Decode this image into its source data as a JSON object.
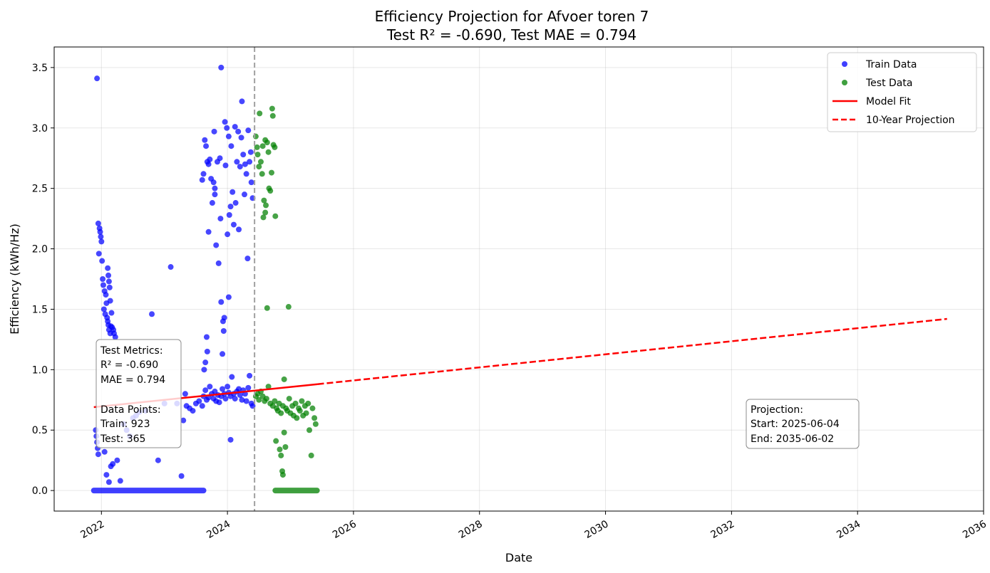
{
  "chart_data": {
    "type": "scatter",
    "title_line1": "Efficiency Projection for Afvoer toren 7",
    "title_line2": "Test R² = -0.690, Test MAE = 0.794",
    "xlabel": "Date",
    "ylabel": "Efficiency (kWh/Hz)",
    "x_ticks": [
      "2022",
      "2024",
      "2026",
      "2028",
      "2030",
      "2032",
      "2034",
      "2036"
    ],
    "y_ticks": [
      "0.0",
      "0.5",
      "1.0",
      "1.5",
      "2.0",
      "2.5",
      "3.0",
      "3.5"
    ],
    "xlim": [
      2021.25,
      2036.0
    ],
    "ylim": [
      -0.17,
      3.67
    ],
    "grid": true,
    "legend_position": "top-right",
    "colors": {
      "train": "#0000ff",
      "test": "#008000",
      "fit": "#ff0000",
      "split": "#a0a0a0"
    },
    "train_test_split_x": 2024.43,
    "series": [
      {
        "name": "Train Data",
        "kind": "scatter",
        "points": [
          [
            2021.93,
            3.41
          ],
          [
            2021.95,
            2.21
          ],
          [
            2021.97,
            2.17
          ],
          [
            2021.98,
            2.14
          ],
          [
            2021.99,
            2.1
          ],
          [
            2022.0,
            2.06
          ],
          [
            2021.96,
            1.96
          ],
          [
            2022.01,
            1.9
          ],
          [
            2022.02,
            1.75
          ],
          [
            2022.03,
            1.7
          ],
          [
            2022.05,
            1.65
          ],
          [
            2022.07,
            1.62
          ],
          [
            2022.08,
            1.55
          ],
          [
            2022.04,
            1.5
          ],
          [
            2022.06,
            1.46
          ],
          [
            2022.09,
            1.43
          ],
          [
            2022.1,
            1.4
          ],
          [
            2022.11,
            1.37
          ],
          [
            2022.12,
            1.33
          ],
          [
            2022.14,
            1.3
          ],
          [
            2022.15,
            1.36
          ],
          [
            2022.17,
            1.35
          ],
          [
            2022.19,
            1.33
          ],
          [
            2022.2,
            1.3
          ],
          [
            2022.22,
            1.27
          ],
          [
            2022.1,
            1.84
          ],
          [
            2022.11,
            1.78
          ],
          [
            2022.12,
            1.73
          ],
          [
            2022.13,
            1.68
          ],
          [
            2022.14,
            1.57
          ],
          [
            2022.16,
            1.47
          ],
          [
            2021.91,
            0.5
          ],
          [
            2021.92,
            0.45
          ],
          [
            2021.93,
            0.4
          ],
          [
            2021.94,
            0.35
          ],
          [
            2021.95,
            0.3
          ],
          [
            2022.05,
            0.32
          ],
          [
            2022.08,
            0.13
          ],
          [
            2022.12,
            0.07
          ],
          [
            2022.15,
            0.2
          ],
          [
            2022.18,
            0.22
          ],
          [
            2022.25,
            0.25
          ],
          [
            2022.3,
            0.08
          ],
          [
            2022.35,
            0.55
          ],
          [
            2022.4,
            0.5
          ],
          [
            2022.45,
            0.45
          ],
          [
            2022.5,
            0.6
          ],
          [
            2022.55,
            0.62
          ],
          [
            2022.6,
            0.65
          ],
          [
            2022.7,
            0.66
          ],
          [
            2022.8,
            1.46
          ],
          [
            2022.9,
            0.25
          ],
          [
            2023.0,
            0.72
          ],
          [
            2023.1,
            1.85
          ],
          [
            2023.2,
            0.72
          ],
          [
            2023.27,
            0.12
          ],
          [
            2023.3,
            0.58
          ],
          [
            2023.33,
            0.8
          ],
          [
            2023.35,
            0.7
          ],
          [
            2023.4,
            0.68
          ],
          [
            2023.45,
            0.66
          ],
          [
            2023.5,
            0.72
          ],
          [
            2023.55,
            0.74
          ],
          [
            2023.6,
            0.7
          ],
          [
            2023.62,
            0.78
          ],
          [
            2023.65,
            0.83
          ],
          [
            2023.67,
            0.75
          ],
          [
            2023.7,
            0.77
          ],
          [
            2023.72,
            0.86
          ],
          [
            2023.75,
            0.8
          ],
          [
            2023.78,
            0.76
          ],
          [
            2023.8,
            0.82
          ],
          [
            2023.82,
            0.74
          ],
          [
            2023.85,
            0.79
          ],
          [
            2023.87,
            0.73
          ],
          [
            2023.9,
            0.78
          ],
          [
            2023.92,
            0.84
          ],
          [
            2023.95,
            0.8
          ],
          [
            2023.97,
            0.76
          ],
          [
            2024.0,
            0.86
          ],
          [
            2024.02,
            0.81
          ],
          [
            2024.05,
            0.78
          ],
          [
            2024.07,
            0.94
          ],
          [
            2024.1,
            0.8
          ],
          [
            2024.12,
            0.76
          ],
          [
            2024.15,
            0.82
          ],
          [
            2024.18,
            0.84
          ],
          [
            2024.2,
            0.79
          ],
          [
            2024.23,
            0.75
          ],
          [
            2024.25,
            0.83
          ],
          [
            2024.28,
            0.8
          ],
          [
            2024.3,
            0.74
          ],
          [
            2024.33,
            0.85
          ],
          [
            2024.35,
            0.95
          ],
          [
            2024.38,
            0.72
          ],
          [
            2024.4,
            0.7
          ],
          [
            2024.05,
            0.42
          ],
          [
            2024.02,
            1.6
          ],
          [
            2023.65,
            1.06
          ],
          [
            2023.67,
            1.27
          ],
          [
            2023.68,
            1.15
          ],
          [
            2023.63,
            1.0
          ],
          [
            2023.6,
            2.57
          ],
          [
            2023.62,
            2.62
          ],
          [
            2023.64,
            2.9
          ],
          [
            2023.66,
            2.85
          ],
          [
            2023.68,
            2.72
          ],
          [
            2023.7,
            2.7
          ],
          [
            2023.72,
            2.74
          ],
          [
            2023.74,
            2.58
          ],
          [
            2023.76,
            2.38
          ],
          [
            2023.78,
            2.55
          ],
          [
            2023.79,
            2.97
          ],
          [
            2023.8,
            2.45
          ],
          [
            2023.82,
            2.03
          ],
          [
            2023.84,
            2.72
          ],
          [
            2023.86,
            1.88
          ],
          [
            2023.88,
            2.75
          ],
          [
            2023.89,
            2.25
          ],
          [
            2023.9,
            3.5
          ],
          [
            2023.92,
            1.13
          ],
          [
            2023.93,
            1.4
          ],
          [
            2023.95,
            1.43
          ],
          [
            2023.94,
            1.32
          ],
          [
            2023.96,
            3.05
          ],
          [
            2023.97,
            2.69
          ],
          [
            2023.99,
            3.0
          ],
          [
            2024.0,
            2.12
          ],
          [
            2024.02,
            2.93
          ],
          [
            2024.03,
            2.28
          ],
          [
            2024.05,
            2.35
          ],
          [
            2024.06,
            2.85
          ],
          [
            2024.08,
            2.47
          ],
          [
            2024.1,
            2.2
          ],
          [
            2024.12,
            3.01
          ],
          [
            2024.13,
            2.38
          ],
          [
            2024.15,
            2.72
          ],
          [
            2024.17,
            2.97
          ],
          [
            2024.18,
            2.16
          ],
          [
            2024.2,
            2.68
          ],
          [
            2024.22,
            2.92
          ],
          [
            2024.23,
            3.22
          ],
          [
            2024.25,
            2.78
          ],
          [
            2024.27,
            2.45
          ],
          [
            2024.28,
            2.7
          ],
          [
            2024.3,
            2.62
          ],
          [
            2024.32,
            1.92
          ],
          [
            2024.33,
            2.98
          ],
          [
            2024.35,
            2.72
          ],
          [
            2024.37,
            2.8
          ],
          [
            2024.38,
            2.55
          ],
          [
            2024.4,
            2.42
          ],
          [
            2023.9,
            1.56
          ],
          [
            2023.8,
            2.5
          ],
          [
            2023.7,
            2.14
          ]
        ]
      },
      {
        "name": "Test Data",
        "kind": "scatter",
        "points": [
          [
            2024.45,
            2.93
          ],
          [
            2024.47,
            2.84
          ],
          [
            2024.48,
            2.78
          ],
          [
            2024.5,
            2.68
          ],
          [
            2024.51,
            3.12
          ],
          [
            2024.53,
            2.72
          ],
          [
            2024.55,
            2.62
          ],
          [
            2024.56,
            2.85
          ],
          [
            2024.58,
            2.4
          ],
          [
            2024.6,
            2.9
          ],
          [
            2024.61,
            2.36
          ],
          [
            2024.63,
            2.88
          ],
          [
            2024.65,
            2.8
          ],
          [
            2024.66,
            2.5
          ],
          [
            2024.68,
            2.48
          ],
          [
            2024.7,
            2.63
          ],
          [
            2024.71,
            3.16
          ],
          [
            2024.72,
            3.1
          ],
          [
            2024.73,
            2.86
          ],
          [
            2024.75,
            2.84
          ],
          [
            2024.76,
            2.27
          ],
          [
            2024.57,
            2.26
          ],
          [
            2024.6,
            2.3
          ],
          [
            2024.45,
            0.78
          ],
          [
            2024.48,
            0.8
          ],
          [
            2024.5,
            0.75
          ],
          [
            2024.53,
            0.82
          ],
          [
            2024.56,
            0.78
          ],
          [
            2024.59,
            0.74
          ],
          [
            2024.62,
            0.76
          ],
          [
            2024.65,
            0.86
          ],
          [
            2024.68,
            0.72
          ],
          [
            2024.72,
            0.7
          ],
          [
            2024.75,
            0.74
          ],
          [
            2024.78,
            0.68
          ],
          [
            2024.8,
            0.66
          ],
          [
            2024.82,
            0.72
          ],
          [
            2024.85,
            0.64
          ],
          [
            2024.88,
            0.7
          ],
          [
            2024.9,
            0.92
          ],
          [
            2024.93,
            0.68
          ],
          [
            2024.95,
            0.66
          ],
          [
            2024.98,
            0.76
          ],
          [
            2025.0,
            0.64
          ],
          [
            2025.03,
            0.7
          ],
          [
            2025.05,
            0.62
          ],
          [
            2025.08,
            0.72
          ],
          [
            2025.1,
            0.6
          ],
          [
            2025.13,
            0.68
          ],
          [
            2025.15,
            0.66
          ],
          [
            2025.18,
            0.74
          ],
          [
            2025.2,
            0.62
          ],
          [
            2025.23,
            0.7
          ],
          [
            2025.25,
            0.64
          ],
          [
            2025.28,
            0.72
          ],
          [
            2025.3,
            0.5
          ],
          [
            2025.33,
            0.29
          ],
          [
            2025.35,
            0.68
          ],
          [
            2025.38,
            0.6
          ],
          [
            2025.4,
            0.55
          ],
          [
            2024.63,
            1.51
          ],
          [
            2024.97,
            1.52
          ],
          [
            2024.77,
            0.41
          ],
          [
            2024.83,
            0.34
          ],
          [
            2024.85,
            0.29
          ],
          [
            2024.87,
            0.16
          ],
          [
            2024.88,
            0.13
          ],
          [
            2024.9,
            0.48
          ],
          [
            2024.92,
            0.36
          ]
        ]
      },
      {
        "name": "Model Fit",
        "kind": "line",
        "points": [
          [
            2021.88,
            0.69
          ],
          [
            2025.43,
            0.88
          ]
        ]
      },
      {
        "name": "10-Year Projection",
        "kind": "dashed-line",
        "points": [
          [
            2025.43,
            0.88
          ],
          [
            2035.42,
            1.42
          ]
        ]
      }
    ],
    "zero_bands": [
      {
        "series": "Train Data",
        "x_start": 2021.88,
        "x_end": 2023.62,
        "y": 0.0
      },
      {
        "series": "Test Data",
        "x_start": 2024.76,
        "x_end": 2025.42,
        "y": 0.0
      }
    ],
    "metrics_box": {
      "line1": "Test Metrics:",
      "line2": "R² = -0.690",
      "line3": "MAE = 0.794",
      "line4": "Data Points:",
      "line5": "Train: 923",
      "line6": "Test: 365"
    },
    "projection_box": {
      "line1": "Projection:",
      "line2": "Start: 2025-06-04",
      "line3": "End: 2035-06-02"
    }
  }
}
